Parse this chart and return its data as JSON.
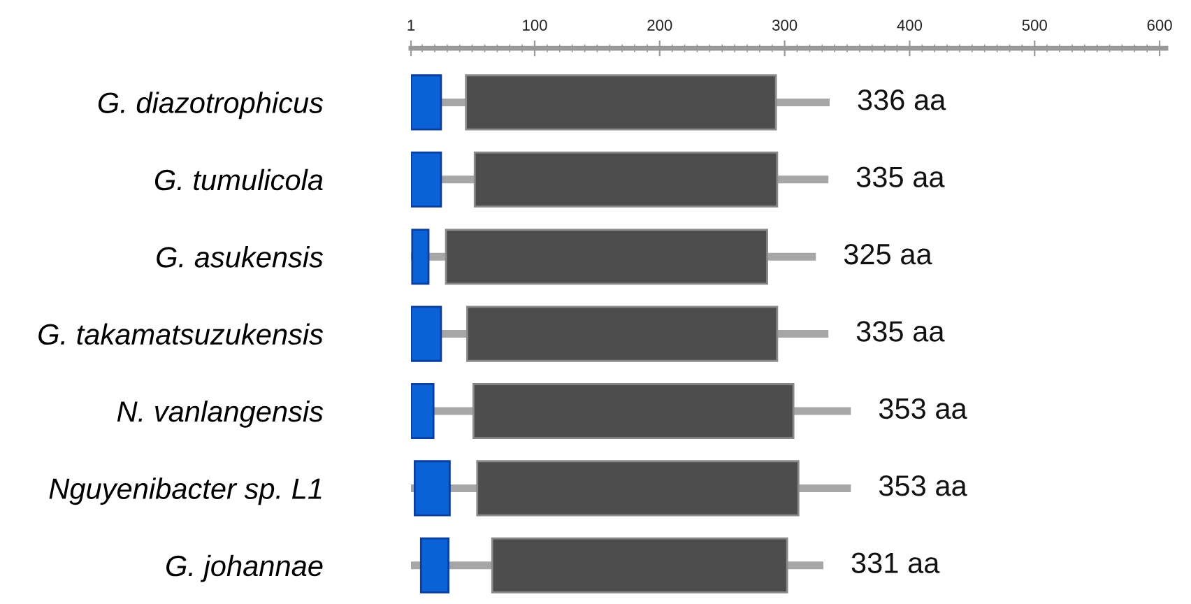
{
  "chart_data": {
    "type": "bar",
    "orientation": "horizontal",
    "categories": [
      "G. diazotrophicus",
      "G. tumulicola",
      "G. asukensis",
      "G. takamatsuzukensis",
      "N. vanlangensis",
      "Nguyenibacter sp. L1",
      "G. johannae"
    ],
    "series": [
      {
        "color": "#a6a6a6",
        "base": [
          1,
          1,
          1,
          1,
          1,
          1,
          1
        ],
        "values": [
          335,
          334,
          324,
          334,
          352,
          352,
          330
        ],
        "value_labels": [
          "336 aa",
          "335 aa",
          "325 aa",
          "335 aa",
          "353 aa",
          "353 aa",
          "331 aa"
        ]
      },
      {
        "color": "#0b62d6",
        "base": [
          1,
          1,
          2,
          1,
          1,
          4,
          9
        ],
        "values": [
          24,
          24,
          13,
          24,
          18,
          28,
          22
        ]
      },
      {
        "color": "#4d4d4d",
        "base": [
          45,
          52,
          29,
          46,
          51,
          54,
          66
        ],
        "values": [
          248,
          242,
          257,
          248,
          256,
          257,
          236
        ]
      }
    ],
    "xlim": [
      1,
      605
    ],
    "xticks": [
      1,
      {
        "value": 10,
        "label": null
      },
      {
        "value": 20,
        "label": null
      },
      {
        "value": 30,
        "label": null
      },
      {
        "value": 40,
        "label": null
      },
      {
        "value": 50,
        "label": null
      },
      {
        "value": 60,
        "label": null
      },
      {
        "value": 70,
        "label": null
      },
      {
        "value": 80,
        "label": null
      },
      {
        "value": 90,
        "label": null
      },
      100,
      {
        "value": 110,
        "label": null
      },
      {
        "value": 120,
        "label": null
      },
      {
        "value": 130,
        "label": null
      },
      {
        "value": 140,
        "label": null
      },
      {
        "value": 150,
        "label": null
      },
      {
        "value": 160,
        "label": null
      },
      {
        "value": 170,
        "label": null
      },
      {
        "value": 180,
        "label": null
      },
      {
        "value": 190,
        "label": null
      },
      200,
      {
        "value": 210,
        "label": null
      },
      {
        "value": 220,
        "label": null
      },
      {
        "value": 230,
        "label": null
      },
      {
        "value": 240,
        "label": null
      },
      {
        "value": 250,
        "label": null
      },
      {
        "value": 260,
        "label": null
      },
      {
        "value": 270,
        "label": null
      },
      {
        "value": 280,
        "label": null
      },
      {
        "value": 290,
        "label": null
      },
      300,
      {
        "value": 310,
        "label": null
      },
      {
        "value": 320,
        "label": null
      },
      {
        "value": 330,
        "label": null
      },
      {
        "value": 340,
        "label": null
      },
      {
        "value": 350,
        "label": null
      },
      {
        "value": 360,
        "label": null
      },
      {
        "value": 370,
        "label": null
      },
      {
        "value": 380,
        "label": null
      },
      {
        "value": 390,
        "label": null
      },
      400,
      {
        "value": 410,
        "label": null
      },
      {
        "value": 420,
        "label": null
      },
      {
        "value": 430,
        "label": null
      },
      {
        "value": 440,
        "label": null
      },
      {
        "value": 450,
        "label": null
      },
      {
        "value": 460,
        "label": null
      },
      {
        "value": 470,
        "label": null
      },
      {
        "value": 480,
        "label": null
      },
      {
        "value": 490,
        "label": null
      },
      500,
      {
        "value": 510,
        "label": null
      },
      {
        "value": 520,
        "label": null
      },
      {
        "value": 530,
        "label": null
      },
      {
        "value": 540,
        "label": null
      },
      {
        "value": 550,
        "label": null
      },
      {
        "value": 560,
        "label": null
      },
      {
        "value": 570,
        "label": null
      },
      {
        "value": 580,
        "label": null
      },
      {
        "value": 590,
        "label": null
      },
      600
    ],
    "grid": false,
    "legend": false
  }
}
